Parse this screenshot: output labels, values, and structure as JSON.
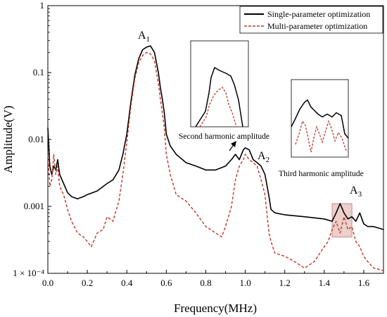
{
  "chart_data": {
    "type": "line",
    "xlabel": "Frequency(MHz)",
    "ylabel": "Amplitude(V)",
    "xlim": [
      0.0,
      1.7
    ],
    "ylim": [
      0.0001,
      1
    ],
    "yscale": "log",
    "x_ticks": [
      0.0,
      0.2,
      0.4,
      0.6,
      0.8,
      1.0,
      1.2,
      1.4,
      1.6
    ],
    "x_tick_labels": [
      "0.0",
      "0.2",
      "0.4",
      "0.6",
      "0.8",
      "1.0",
      "1.2",
      "1.4",
      "1.6"
    ],
    "y_ticks": [
      0.0001,
      0.001,
      0.01,
      0.1,
      1
    ],
    "y_tick_labels": [
      "1 × 10⁻⁴",
      "0.001",
      "0.01",
      "0.1",
      "1"
    ],
    "legend_position": "top-right",
    "series": [
      {
        "name": "Single-parameter optimization",
        "color": "#000000",
        "style": "solid",
        "x": [
          0.0,
          0.01,
          0.02,
          0.03,
          0.04,
          0.05,
          0.06,
          0.08,
          0.1,
          0.12,
          0.15,
          0.18,
          0.2,
          0.25,
          0.3,
          0.33,
          0.36,
          0.38,
          0.4,
          0.42,
          0.44,
          0.46,
          0.48,
          0.5,
          0.52,
          0.54,
          0.56,
          0.57,
          0.58,
          0.59,
          0.6,
          0.62,
          0.65,
          0.7,
          0.75,
          0.8,
          0.85,
          0.9,
          0.93,
          0.95,
          0.97,
          0.99,
          1.0,
          1.02,
          1.04,
          1.06,
          1.08,
          1.1,
          1.12,
          1.13,
          1.15,
          1.2,
          1.3,
          1.4,
          1.44,
          1.46,
          1.48,
          1.5,
          1.52,
          1.54,
          1.56,
          1.58,
          1.6,
          1.62,
          1.65,
          1.7
        ],
        "values": [
          0.015,
          0.004,
          0.003,
          0.004,
          0.0035,
          0.005,
          0.003,
          0.0022,
          0.0016,
          0.0014,
          0.0013,
          0.0014,
          0.0015,
          0.0017,
          0.0022,
          0.0025,
          0.0035,
          0.006,
          0.012,
          0.035,
          0.09,
          0.16,
          0.22,
          0.24,
          0.25,
          0.2,
          0.1,
          0.06,
          0.04,
          0.025,
          0.012,
          0.008,
          0.006,
          0.0045,
          0.004,
          0.0035,
          0.0035,
          0.004,
          0.005,
          0.006,
          0.005,
          0.007,
          0.0075,
          0.007,
          0.005,
          0.0045,
          0.004,
          0.003,
          0.0014,
          0.0009,
          0.0008,
          0.00075,
          0.0007,
          0.00065,
          0.0006,
          0.0008,
          0.0011,
          0.0008,
          0.00065,
          0.0007,
          0.0006,
          0.0008,
          0.00055,
          0.0005,
          0.0005,
          0.00045
        ]
      },
      {
        "name": "Multi-parameter optimization",
        "color": "#c0392b",
        "style": "dashed",
        "x": [
          0.0,
          0.01,
          0.02,
          0.03,
          0.04,
          0.05,
          0.06,
          0.08,
          0.1,
          0.12,
          0.15,
          0.18,
          0.2,
          0.22,
          0.25,
          0.28,
          0.3,
          0.33,
          0.36,
          0.38,
          0.4,
          0.42,
          0.44,
          0.46,
          0.48,
          0.5,
          0.52,
          0.54,
          0.56,
          0.57,
          0.58,
          0.59,
          0.6,
          0.62,
          0.65,
          0.7,
          0.75,
          0.8,
          0.85,
          0.88,
          0.9,
          0.93,
          0.95,
          0.97,
          0.99,
          1.0,
          1.02,
          1.04,
          1.06,
          1.08,
          1.1,
          1.12,
          1.13,
          1.15,
          1.2,
          1.25,
          1.3,
          1.35,
          1.4,
          1.42,
          1.44,
          1.46,
          1.48,
          1.5,
          1.52,
          1.54,
          1.56,
          1.58,
          1.6,
          1.62,
          1.65,
          1.7
        ],
        "values": [
          0.006,
          0.002,
          0.0025,
          0.006,
          0.003,
          0.004,
          0.002,
          0.0015,
          0.0009,
          0.0006,
          0.0004,
          0.00035,
          0.0003,
          0.00025,
          0.0004,
          0.00045,
          0.0007,
          0.0006,
          0.0012,
          0.003,
          0.009,
          0.03,
          0.08,
          0.14,
          0.18,
          0.2,
          0.19,
          0.15,
          0.07,
          0.04,
          0.025,
          0.015,
          0.006,
          0.003,
          0.0015,
          0.0012,
          0.0008,
          0.0005,
          0.0004,
          0.00035,
          0.0005,
          0.001,
          0.0025,
          0.004,
          0.005,
          0.006,
          0.005,
          0.0045,
          0.004,
          0.0025,
          0.0015,
          0.0004,
          0.0003,
          0.0002,
          0.00018,
          0.00015,
          0.00012,
          0.00015,
          0.00025,
          0.0003,
          0.00045,
          0.0006,
          0.0004,
          0.0007,
          0.00045,
          0.0005,
          0.0003,
          0.00025,
          0.00018,
          0.00015,
          0.00012,
          0.00011
        ]
      }
    ],
    "peak_labels": [
      {
        "base": "A",
        "sub": "1",
        "x": 0.5,
        "y": 0.45
      },
      {
        "base": "A",
        "sub": "2",
        "x": 1.05,
        "y": 0.0065
      },
      {
        "base": "A",
        "sub": "3",
        "x": 1.55,
        "y": 0.0012
      }
    ],
    "annotations": [
      {
        "text": "Second harmonic amplitude",
        "x": 0.9,
        "y": 0.014
      },
      {
        "text": "Third harmonic amplitude",
        "x": 1.49,
        "y": 0.0045
      }
    ],
    "highlight_region": {
      "x0": 1.44,
      "x1": 1.54,
      "y0": 0.00035,
      "y1": 0.0011,
      "color": "#e8c8c4"
    }
  }
}
